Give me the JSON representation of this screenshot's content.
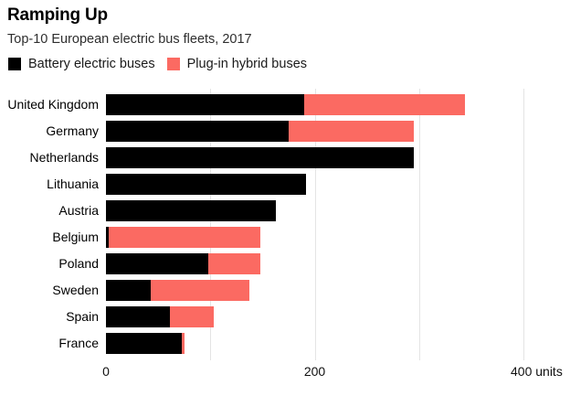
{
  "header": {
    "title": "Ramping Up",
    "subtitle": "Top-10 European electric bus fleets, 2017"
  },
  "legend": {
    "items": [
      {
        "label": "Battery electric buses",
        "key": "battery"
      },
      {
        "label": "Plug-in hybrid buses",
        "key": "hybrid"
      }
    ]
  },
  "colors": {
    "battery": "#000000",
    "hybrid": "#fb6a62",
    "gridline": "#e4e4e4",
    "text": "#000000",
    "subtitle_text": "#2e2e2e"
  },
  "chart_data": {
    "type": "bar",
    "orientation": "horizontal",
    "stacked": true,
    "title": "Ramping Up",
    "subtitle": "Top-10 European electric bus fleets, 2017",
    "categories": [
      "United Kingdom",
      "Germany",
      "Netherlands",
      "Lithuania",
      "Austria",
      "Belgium",
      "Poland",
      "Sweden",
      "Spain",
      "France"
    ],
    "series": [
      {
        "name": "Battery electric buses",
        "color": "#000000",
        "values": [
          190,
          175,
          295,
          192,
          163,
          3,
          98,
          43,
          61,
          73
        ]
      },
      {
        "name": "Plug-in hybrid buses",
        "color": "#fb6a62",
        "values": [
          154,
          120,
          0,
          0,
          0,
          145,
          50,
          94,
          42,
          2
        ]
      }
    ],
    "totals": [
      344,
      295,
      295,
      192,
      163,
      148,
      148,
      137,
      103,
      75
    ],
    "xlabel": "units",
    "xlim": [
      0,
      400
    ],
    "x_ticks": [
      {
        "value": 0,
        "label": "0"
      },
      {
        "value": 200,
        "label": "200"
      },
      {
        "value": 400,
        "label": "400 units"
      }
    ],
    "gridlines": [
      100,
      200,
      300,
      400
    ],
    "grid": true,
    "legend_position": "top"
  }
}
